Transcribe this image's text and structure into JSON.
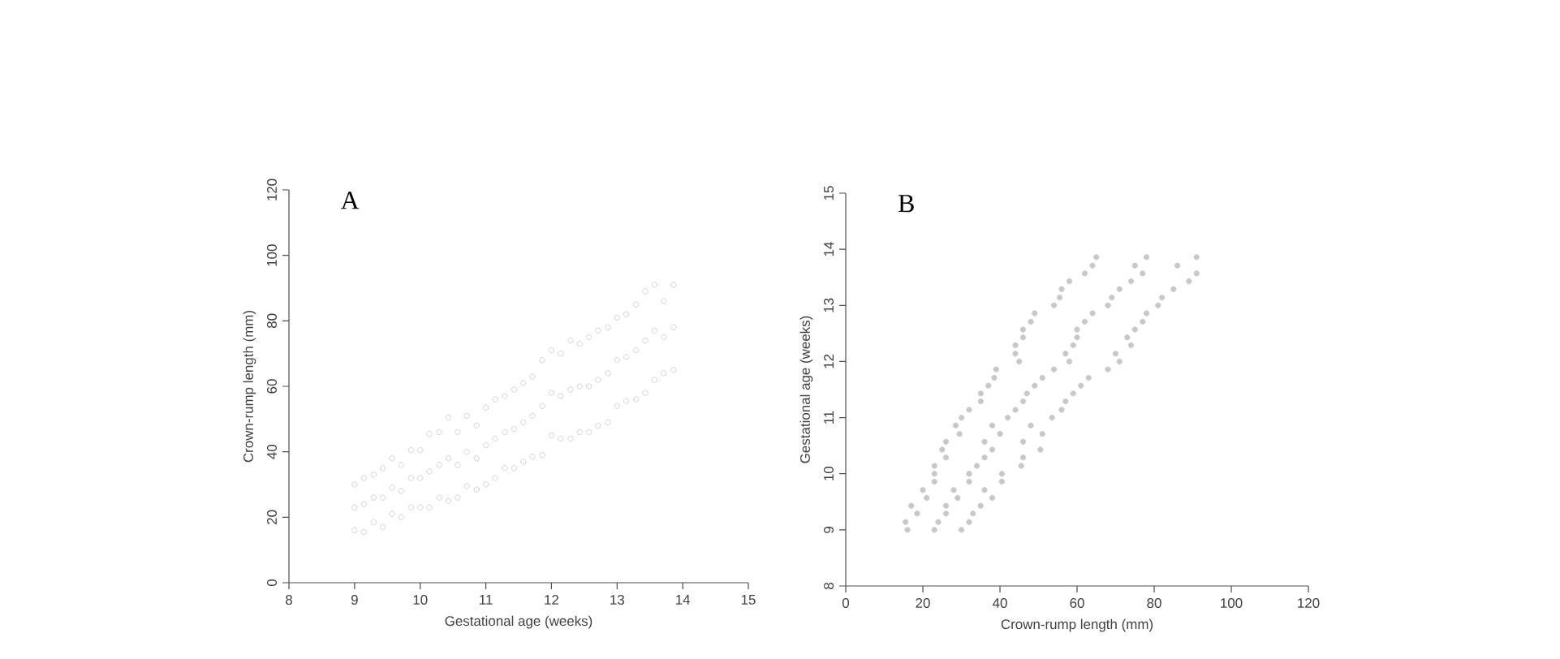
{
  "chart_data": [
    {
      "type": "scatter",
      "xlabel": "Gestational age (weeks)",
      "ylabel": "Crown-rump length (mm)",
      "annotations": [
        "A"
      ],
      "xlim": [
        8,
        15
      ],
      "ylim": [
        0,
        120
      ],
      "xticks": [
        8,
        9,
        10,
        11,
        12,
        13,
        14,
        15
      ],
      "yticks": [
        0,
        20,
        40,
        60,
        80,
        100,
        120
      ],
      "series": [
        {
          "color": "#c8c8c8",
          "x": [
            9.0,
            9.0,
            9.0,
            9.14,
            9.14,
            9.14,
            9.29,
            9.29,
            9.29,
            9.43,
            9.43,
            9.43,
            9.57,
            9.57,
            9.57,
            9.71,
            9.71,
            9.71,
            9.86,
            9.86,
            9.86,
            10.0,
            10.0,
            10.0,
            10.14,
            10.14,
            10.14,
            10.29,
            10.29,
            10.29,
            10.43,
            10.43,
            10.43,
            10.57,
            10.57,
            10.57,
            10.71,
            10.71,
            10.71,
            10.86,
            10.86,
            10.86,
            11.0,
            11.0,
            11.0,
            11.14,
            11.14,
            11.14,
            11.29,
            11.29,
            11.29,
            11.43,
            11.43,
            11.43,
            11.57,
            11.57,
            11.57,
            11.71,
            11.71,
            11.71,
            11.86,
            11.86,
            11.86,
            12.0,
            12.0,
            12.0,
            12.14,
            12.14,
            12.14,
            12.29,
            12.29,
            12.29,
            12.43,
            12.43,
            12.43,
            12.57,
            12.57,
            12.57,
            12.71,
            12.71,
            12.71,
            12.86,
            12.86,
            12.86,
            13.0,
            13.0,
            13.0,
            13.14,
            13.14,
            13.14,
            13.29,
            13.29,
            13.29,
            13.43,
            13.43,
            13.43,
            13.57,
            13.57,
            13.57,
            13.71,
            13.71,
            13.71,
            13.86,
            13.86,
            13.86
          ],
          "values": [
            16,
            23,
            30,
            15.5,
            24,
            32,
            18.5,
            26,
            33,
            17,
            26,
            35,
            21,
            29,
            38,
            20,
            28,
            36,
            23,
            32,
            40.5,
            23,
            32,
            40.5,
            23,
            34,
            45.5,
            26,
            36,
            46,
            25,
            38,
            50.5,
            26,
            36,
            46,
            29.5,
            40,
            51,
            28.5,
            38,
            48,
            30,
            42,
            53.5,
            32,
            44,
            56,
            35,
            46,
            57,
            35,
            47,
            59,
            37,
            49,
            61,
            38.5,
            51,
            63,
            39,
            54,
            68,
            45,
            58,
            71,
            44,
            57,
            70,
            44,
            59,
            74,
            46,
            60,
            73,
            46,
            60,
            75,
            48,
            62,
            77,
            49,
            64,
            78,
            54,
            68,
            81,
            55.5,
            69,
            82,
            56,
            71,
            85,
            58,
            74,
            89,
            62,
            77,
            91,
            64,
            75,
            86,
            65,
            78,
            91
          ]
        }
      ]
    },
    {
      "type": "scatter",
      "xlabel": "Crown-rump length (mm)",
      "ylabel": "Gestational age (weeks)",
      "annotations": [
        "B"
      ],
      "xlim": [
        0,
        120
      ],
      "ylim": [
        8,
        15
      ],
      "xticks": [
        0,
        20,
        40,
        60,
        80,
        100,
        120
      ],
      "yticks": [
        8,
        9,
        10,
        11,
        12,
        13,
        14,
        15
      ],
      "series": [
        {
          "color": "#c8c8c8",
          "x": [
            16,
            23,
            30,
            15.5,
            24,
            32,
            18.5,
            26,
            33,
            17,
            26,
            35,
            21,
            29,
            38,
            20,
            28,
            36,
            23,
            32,
            40.5,
            23,
            32,
            40.5,
            23,
            34,
            45.5,
            26,
            36,
            46,
            25,
            38,
            50.5,
            26,
            36,
            46,
            29.5,
            40,
            51,
            28.5,
            38,
            48,
            30,
            42,
            53.5,
            32,
            44,
            56,
            35,
            46,
            57,
            35,
            47,
            59,
            37,
            49,
            61,
            38.5,
            51,
            63,
            39,
            54,
            68,
            45,
            58,
            71,
            44,
            57,
            70,
            44,
            59,
            74,
            46,
            60,
            73,
            46,
            60,
            75,
            48,
            62,
            77,
            49,
            64,
            78,
            54,
            68,
            81,
            55.5,
            69,
            82,
            56,
            71,
            85,
            58,
            74,
            89,
            62,
            77,
            91,
            64,
            75,
            86,
            65,
            78,
            91
          ],
          "values": [
            9.0,
            9.0,
            9.0,
            9.14,
            9.14,
            9.14,
            9.29,
            9.29,
            9.29,
            9.43,
            9.43,
            9.43,
            9.57,
            9.57,
            9.57,
            9.71,
            9.71,
            9.71,
            9.86,
            9.86,
            9.86,
            10.0,
            10.0,
            10.0,
            10.14,
            10.14,
            10.14,
            10.29,
            10.29,
            10.29,
            10.43,
            10.43,
            10.43,
            10.57,
            10.57,
            10.57,
            10.71,
            10.71,
            10.71,
            10.86,
            10.86,
            10.86,
            11.0,
            11.0,
            11.0,
            11.14,
            11.14,
            11.14,
            11.29,
            11.29,
            11.29,
            11.43,
            11.43,
            11.43,
            11.57,
            11.57,
            11.57,
            11.71,
            11.71,
            11.71,
            11.86,
            11.86,
            11.86,
            12.0,
            12.0,
            12.0,
            12.14,
            12.14,
            12.14,
            12.29,
            12.29,
            12.29,
            12.43,
            12.43,
            12.43,
            12.57,
            12.57,
            12.57,
            12.71,
            12.71,
            12.71,
            12.86,
            12.86,
            12.86,
            13.0,
            13.0,
            13.0,
            13.14,
            13.14,
            13.14,
            13.29,
            13.29,
            13.29,
            13.43,
            13.43,
            13.43,
            13.57,
            13.57,
            13.57,
            13.71,
            13.71,
            13.71,
            13.86,
            13.86,
            13.86
          ]
        }
      ]
    }
  ]
}
